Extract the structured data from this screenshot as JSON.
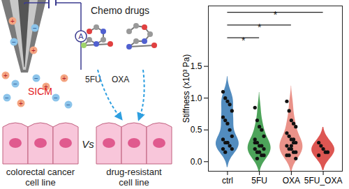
{
  "chart_data": {
    "type": "violin",
    "y_label": "Stiffness (x10³ Pa)",
    "categories": [
      "ctrl",
      "5FU",
      "OXA",
      "5FU_OXA"
    ],
    "colors": [
      "#3f7fb8",
      "#3a9a48",
      "#e8867c",
      "#d9443f"
    ],
    "values": [
      [
        1.1,
        1.0,
        0.95,
        0.9,
        0.8,
        0.7,
        0.65,
        0.6,
        0.5,
        0.4,
        0.35,
        0.3,
        0.3,
        0.25,
        0.2,
        0.2,
        0.15,
        0.3
      ],
      [
        0.85,
        0.65,
        0.55,
        0.5,
        0.4,
        0.35,
        0.3,
        0.25,
        0.25,
        0.2,
        0.2,
        0.15,
        0.15,
        0.1,
        0.1,
        0.3,
        0.05
      ],
      [
        0.95,
        0.8,
        0.65,
        0.6,
        0.55,
        0.45,
        0.4,
        0.35,
        0.3,
        0.3,
        0.25,
        0.2,
        0.2,
        0.15,
        0.15,
        0.1,
        0.1,
        0.25,
        0.35,
        0.05
      ],
      [
        0.3,
        0.25,
        0.2,
        0.15,
        0.15,
        0.1
      ]
    ],
    "ylim": [
      -0.15,
      2.45
    ],
    "yticks": [
      {
        "value": 0,
        "label": "0.0"
      },
      {
        "value": 0.5,
        "label": "0.5"
      },
      {
        "value": 1,
        "label": "1.0"
      },
      {
        "value": 1.5,
        "label": "1.5"
      }
    ],
    "significance": [
      {
        "from": "ctrl",
        "to": "5FU",
        "y": 1.95,
        "label": "*"
      },
      {
        "from": "ctrl",
        "to": "OXA",
        "y": 2.15,
        "label": "*"
      },
      {
        "from": "ctrl",
        "to": "5FU_OXA",
        "y": 2.35,
        "label": "*"
      }
    ]
  },
  "diagram": {
    "title": "Chemo drugs",
    "probe_label": "SICM",
    "ammeter_label": "A",
    "ion_signs": [
      "+",
      "−"
    ],
    "drugs": [
      "5FU",
      "OXA"
    ],
    "comparison": "Vs",
    "cells": [
      [
        "colorectal cancer",
        "cell line"
      ],
      [
        "drug-resistant",
        "cell line"
      ]
    ]
  }
}
